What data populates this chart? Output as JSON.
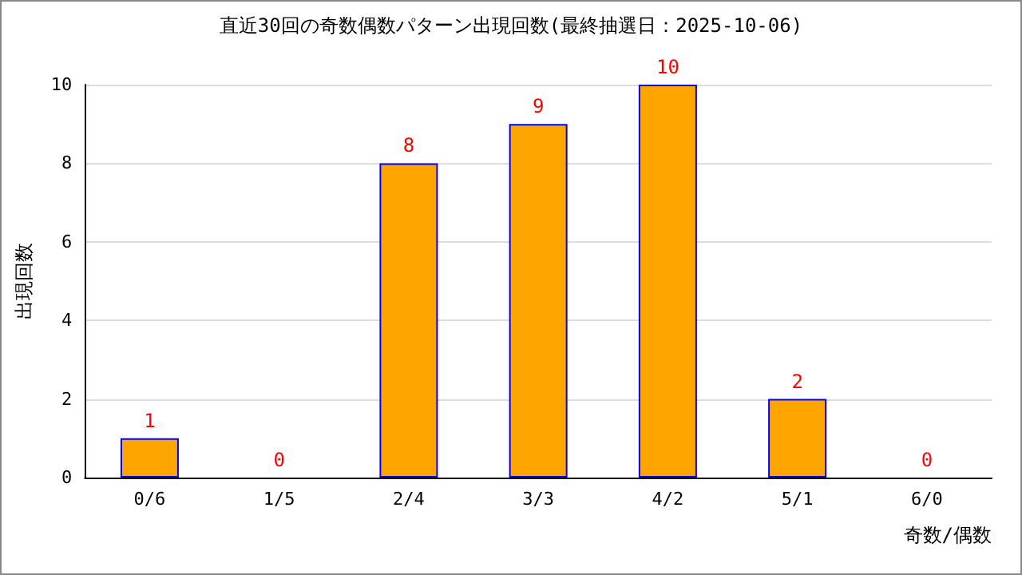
{
  "chart_data": {
    "type": "bar",
    "title": "直近30回の奇数偶数パターン出現回数(最終抽選日：2025-10-06)",
    "categories": [
      "0/6",
      "1/5",
      "2/4",
      "3/3",
      "4/2",
      "5/1",
      "6/0"
    ],
    "values": [
      1,
      0,
      8,
      9,
      10,
      2,
      0
    ],
    "color": "#ffa500",
    "xlabel": "奇数/偶数",
    "ylabel": "出現回数",
    "ylim": [
      0,
      10
    ],
    "yticks": [
      0,
      2,
      4,
      6,
      8,
      10
    ],
    "grid": "y",
    "data_labels": true
  }
}
